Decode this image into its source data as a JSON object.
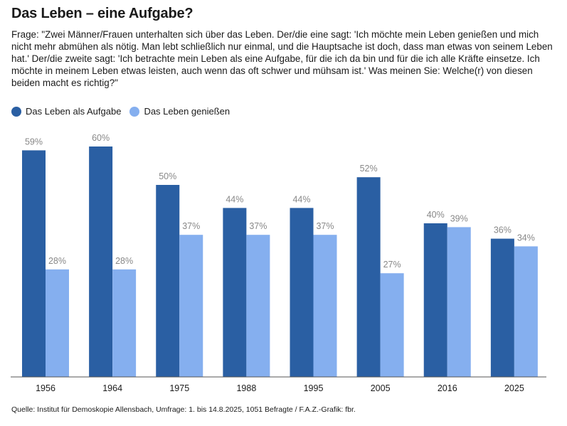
{
  "header": {
    "title": "Das Leben – eine Aufgabe?",
    "subtitle": "Frage: \"Zwei Männer/Frauen unterhalten sich über das Leben. Der/die eine sagt: 'Ich möchte mein Leben genießen und mich nicht mehr abmühen als nötig. Man lebt schließlich nur einmal, und die Hauptsache ist doch, dass man etwas von seinem Leben hat.' Der/die zweite sagt: 'Ich betrachte mein Leben als eine Aufgabe, für die ich da bin und für die ich alle Kräfte einsetze. Ich möchte in meinem Leben etwas leisten, auch wenn das oft schwer und mühsam ist.' Was meinen Sie: Welche(r) von diesen beiden macht es richtig?\""
  },
  "footer": {
    "source": "Quelle: Institut für Demoskopie Allensbach, Umfrage: 1. bis 14.8.2025, 1051 Befragte / F.A.Z.-Grafik: fbr."
  },
  "chart_data": {
    "type": "bar",
    "categories": [
      "1956",
      "1964",
      "1975",
      "1988",
      "1995",
      "2005",
      "2016",
      "2025"
    ],
    "series": [
      {
        "name": "Das Leben als Aufgabe",
        "values": [
          59,
          60,
          50,
          44,
          44,
          52,
          40,
          36
        ],
        "color": "#2a5fa3"
      },
      {
        "name": "Das Leben genießen",
        "values": [
          28,
          28,
          37,
          37,
          37,
          27,
          39,
          34
        ],
        "color": "#85afef"
      }
    ],
    "value_suffix": "%",
    "ylim": [
      0,
      60
    ],
    "legend_position": "top-left",
    "grid": false,
    "label_color": "#888888"
  }
}
